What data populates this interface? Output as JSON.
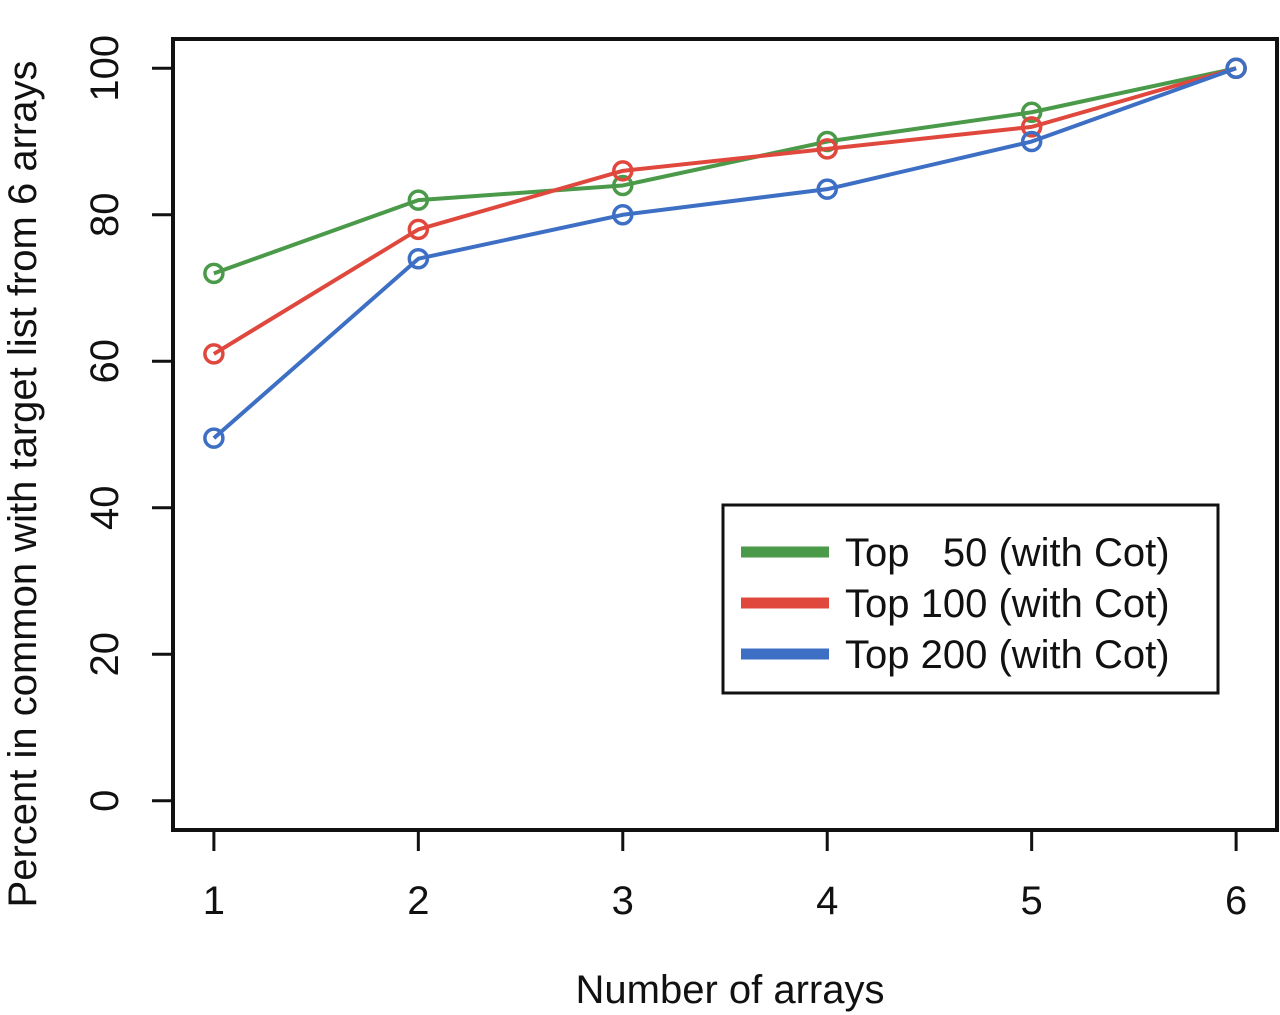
{
  "chart_data": {
    "type": "line",
    "title": "",
    "xlabel": "Number of arrays",
    "ylabel": "Percent in common with target list from 6 arrays",
    "x": [
      1,
      2,
      3,
      4,
      5,
      6
    ],
    "xlim": [
      0.8,
      6.2
    ],
    "ylim": [
      -4,
      104
    ],
    "x_ticks": [
      1,
      2,
      3,
      4,
      5,
      6
    ],
    "y_ticks": [
      0,
      20,
      40,
      60,
      80,
      100
    ],
    "grid": false,
    "legend_position": "bottom-right",
    "marker": "open-circle",
    "series": [
      {
        "name": "Top   50 (with Cot)",
        "color": "#4a9a4a",
        "values": [
          72,
          82,
          84,
          90,
          94,
          100
        ]
      },
      {
        "name": "Top 100 (with Cot)",
        "color": "#e0483e",
        "values": [
          61,
          78,
          86,
          89,
          92,
          100
        ]
      },
      {
        "name": "Top 200 (with Cot)",
        "color": "#3d6fc4",
        "values": [
          49.5,
          74,
          80,
          83.5,
          90,
          100
        ]
      }
    ]
  }
}
